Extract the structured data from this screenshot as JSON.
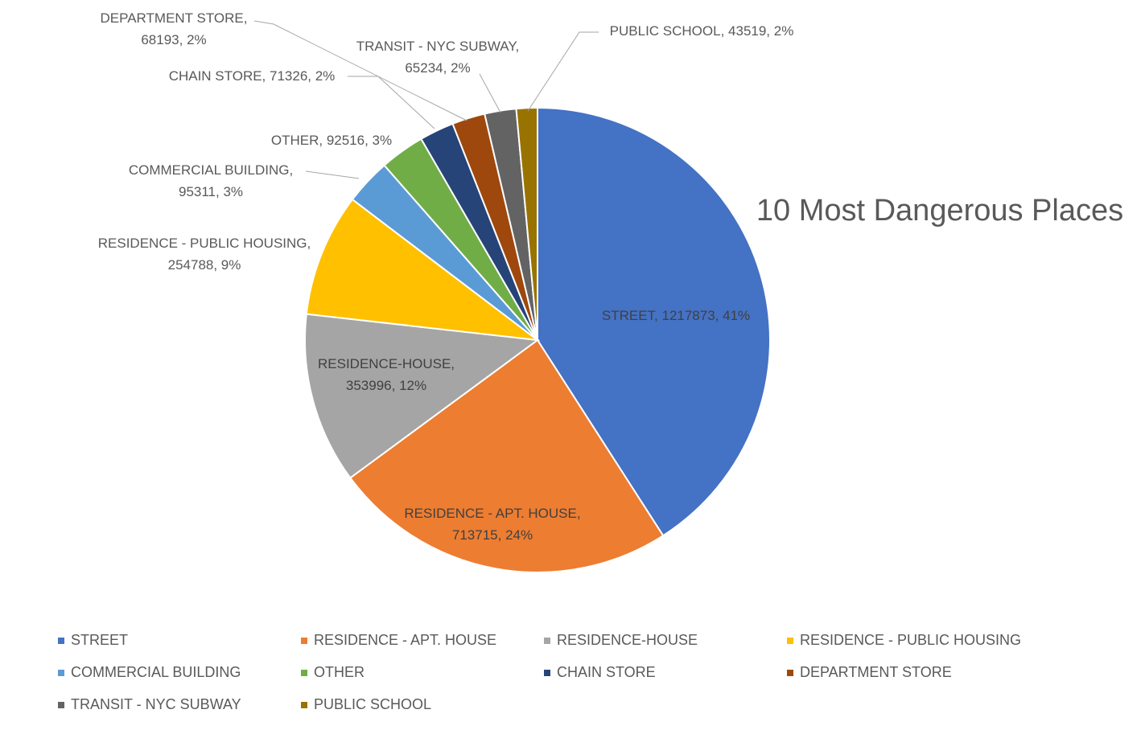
{
  "chart_data": {
    "type": "pie",
    "title": "10 Most Dangerous Places",
    "slices": [
      {
        "name": "STREET",
        "value": 1217873,
        "percent": "41%",
        "color": "#4472C4",
        "label_lines": [
          "STREET, 1217873, 41%"
        ]
      },
      {
        "name": "RESIDENCE - APT. HOUSE",
        "value": 713715,
        "percent": "24%",
        "color": "#ED7D31",
        "label_lines": [
          "RESIDENCE - APT. HOUSE,",
          "713715, 24%"
        ]
      },
      {
        "name": "RESIDENCE-HOUSE",
        "value": 353996,
        "percent": "12%",
        "color": "#A5A5A5",
        "label_lines": [
          "RESIDENCE-HOUSE,",
          "353996, 12%"
        ]
      },
      {
        "name": "RESIDENCE - PUBLIC HOUSING",
        "value": 254788,
        "percent": "9%",
        "color": "#FFC000",
        "label_lines": [
          "RESIDENCE - PUBLIC HOUSING,",
          "254788, 9%"
        ]
      },
      {
        "name": "COMMERCIAL BUILDING",
        "value": 95311,
        "percent": "3%",
        "color": "#5B9BD5",
        "label_lines": [
          "COMMERCIAL BUILDING,",
          "95311, 3%"
        ]
      },
      {
        "name": "OTHER",
        "value": 92516,
        "percent": "3%",
        "color": "#70AD47",
        "label_lines": [
          "OTHER, 92516, 3%"
        ]
      },
      {
        "name": "CHAIN STORE",
        "value": 71326,
        "percent": "2%",
        "color": "#264478",
        "label_lines": [
          "CHAIN STORE, 71326, 2%"
        ]
      },
      {
        "name": "DEPARTMENT STORE",
        "value": 68193,
        "percent": "2%",
        "color": "#9E480E",
        "label_lines": [
          "DEPARTMENT STORE,",
          "68193, 2%"
        ]
      },
      {
        "name": "TRANSIT - NYC SUBWAY",
        "value": 65234,
        "percent": "2%",
        "color": "#636363",
        "label_lines": [
          "TRANSIT - NYC SUBWAY,",
          "65234, 2%"
        ]
      },
      {
        "name": "PUBLIC SCHOOL",
        "value": 43519,
        "percent": "2%",
        "color": "#997300",
        "label_lines": [
          "PUBLIC SCHOOL, 43519, 2%"
        ]
      }
    ],
    "legend": [
      {
        "label": "STREET",
        "color": "#4472C4"
      },
      {
        "label": "RESIDENCE - APT. HOUSE",
        "color": "#ED7D31"
      },
      {
        "label": "RESIDENCE-HOUSE",
        "color": "#A5A5A5"
      },
      {
        "label": "RESIDENCE - PUBLIC HOUSING",
        "color": "#FFC000"
      },
      {
        "label": "COMMERCIAL BUILDING",
        "color": "#5B9BD5"
      },
      {
        "label": "OTHER",
        "color": "#70AD47"
      },
      {
        "label": "CHAIN STORE",
        "color": "#264478"
      },
      {
        "label": "DEPARTMENT STORE",
        "color": "#9E480E"
      },
      {
        "label": "TRANSIT - NYC SUBWAY",
        "color": "#636363"
      },
      {
        "label": "PUBLIC SCHOOL",
        "color": "#997300"
      }
    ],
    "legend_position": "bottom"
  }
}
